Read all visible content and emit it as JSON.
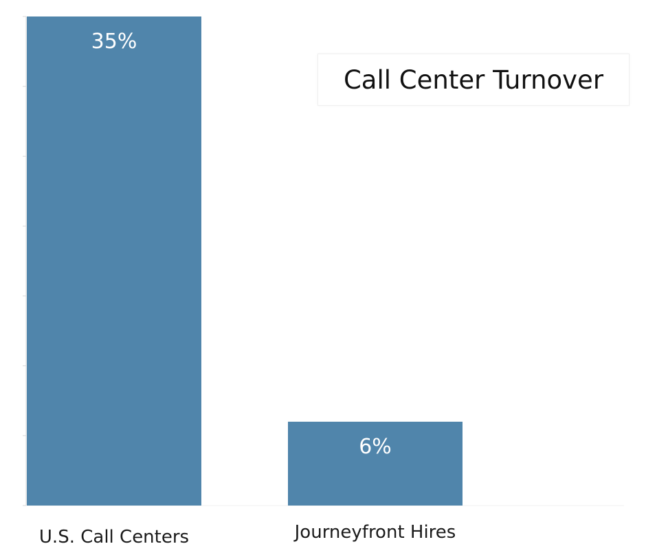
{
  "chart_data": {
    "type": "bar",
    "title": "",
    "legend": {
      "text": "Call Center Turnover",
      "placement": "top-right"
    },
    "categories": [
      "U.S. Call Centers",
      "Journeyfront Hires"
    ],
    "series": [
      {
        "name": "Call Center Turnover",
        "values": [
          35,
          6
        ],
        "value_labels": [
          "35%",
          "6%"
        ],
        "color": "#5085AB"
      }
    ],
    "ylim": [
      0,
      35
    ],
    "xlabel": "",
    "ylabel": "",
    "grid": false,
    "axis_color": "#d9d9d9"
  }
}
